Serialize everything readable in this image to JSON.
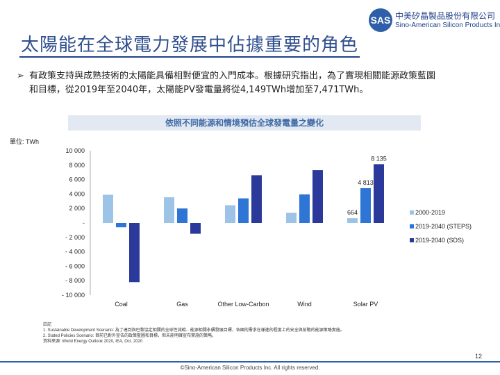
{
  "page": {
    "title": "太陽能在全球電力發展中佔據重要的角色",
    "bullet_line1": "有政策支持與成熟技術的太陽能具備相對便宜的入門成本。根據研究指出，為了實現相關能源政策藍圖",
    "bullet_line2": "和目標，從2019年至2040年，太陽能PV發電量將從4,149TWh增加至7,471TWh。",
    "page_number": "12",
    "copyright": "©Sino-American Silicon Products Inc. All rights reserved."
  },
  "logo": {
    "mark": "SAS",
    "name_cn": "中美矽晶製品股份有限公司",
    "name_en": "Sino-American Silicon Products Inc."
  },
  "chart_header": "依照不同能源和情境預估全球發電量之變化",
  "unit_label": "單位: TWh",
  "notes": {
    "heading": "註記",
    "note1": "1. Sustainable Development Scenario: 為了達到與巴黎協定相關的全球性減碳、能源相關永續發展目標，各國的需求在樣進的程度上的安全與前瞻的能源策略實施。",
    "note2": "2. Stated Policies Scenario: 目前已對外宣告的政策藍圖和目標，但未能明確宣布實施的策略。",
    "source": "資料來源: World Energy Outlook 2020, IEA, Oct. 2020"
  },
  "chart_data": {
    "type": "bar",
    "categories": [
      "Coal",
      "Gas",
      "Other Low-Carbon",
      "Wind",
      "Solar PV"
    ],
    "series": [
      {
        "name": "2000-2019",
        "color": "#9dc3e6",
        "values": [
          3900,
          3550,
          2450,
          1400,
          664
        ]
      },
      {
        "name": "2019-2040 (STEPS)",
        "color": "#2e75d6",
        "values": [
          -600,
          2000,
          3400,
          3950,
          4813
        ]
      },
      {
        "name": "2019-2040 (SDS)",
        "color": "#2b3a9a",
        "values": [
          -8200,
          -1500,
          6600,
          7300,
          8135
        ]
      }
    ],
    "data_labels": [
      {
        "series": 2,
        "category": 4,
        "text": "8 135"
      },
      {
        "series": 1,
        "category": 4,
        "text": "4 813"
      },
      {
        "series": 0,
        "category": 4,
        "text": "664"
      }
    ],
    "ylim": [
      -10000,
      10000
    ],
    "yticks": [
      {
        "value": 10000,
        "label": "10 000"
      },
      {
        "value": 8000,
        "label": "8 000"
      },
      {
        "value": 6000,
        "label": "6 000"
      },
      {
        "value": 4000,
        "label": "4 000"
      },
      {
        "value": 2000,
        "label": "2 000"
      },
      {
        "value": 0,
        "label": "-"
      },
      {
        "value": -2000,
        "label": "- 2 000"
      },
      {
        "value": -4000,
        "label": "- 4 000"
      },
      {
        "value": -6000,
        "label": "- 6 000"
      },
      {
        "value": -8000,
        "label": "- 8 000"
      },
      {
        "value": -10000,
        "label": "- 10 000"
      }
    ],
    "grid": false,
    "legend_position": "right"
  }
}
